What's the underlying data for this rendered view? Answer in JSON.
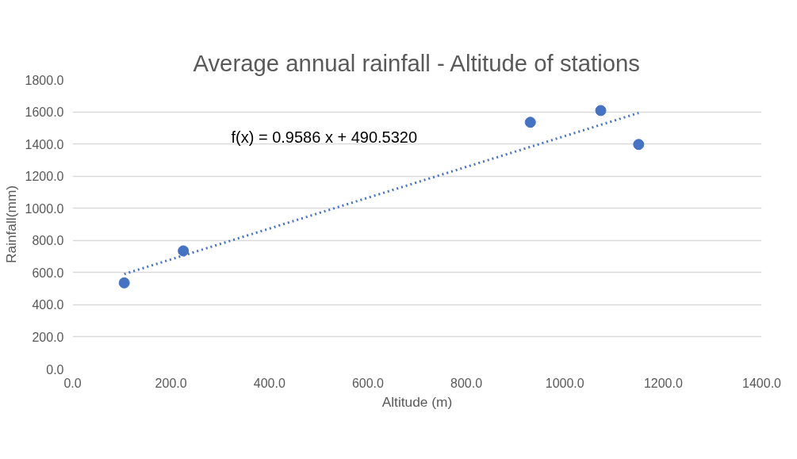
{
  "chart_data": {
    "type": "scatter",
    "title": "Average annual rainfall - Altitude of stations",
    "xlabel": "Altitude (m)",
    "ylabel": "Rainfall(mm)",
    "xlim": [
      0,
      1400
    ],
    "ylim": [
      0,
      1800
    ],
    "xticks": [
      {
        "value": 0,
        "label": "0.0"
      },
      {
        "value": 200,
        "label": "200.0"
      },
      {
        "value": 400,
        "label": "400.0"
      },
      {
        "value": 600,
        "label": "600.0"
      },
      {
        "value": 800,
        "label": "800.0"
      },
      {
        "value": 1000,
        "label": "1000.0"
      },
      {
        "value": 1200,
        "label": "1200.0"
      },
      {
        "value": 1400,
        "label": "1400.0"
      }
    ],
    "yticks": [
      {
        "value": 0,
        "label": "0.0"
      },
      {
        "value": 200,
        "label": "200.0"
      },
      {
        "value": 400,
        "label": "400.0"
      },
      {
        "value": 600,
        "label": "600.0"
      },
      {
        "value": 800,
        "label": "800.0"
      },
      {
        "value": 1000,
        "label": "1000.0"
      },
      {
        "value": 1200,
        "label": "1200.0"
      },
      {
        "value": 1400,
        "label": "1400.0"
      },
      {
        "value": 1600,
        "label": "1600.0"
      },
      {
        "value": 1800,
        "label": "1800.0"
      }
    ],
    "grid": "y",
    "marker": "circle",
    "series": [
      {
        "color": "#4472c4",
        "x": [
          105,
          225,
          930,
          1073,
          1150
        ],
        "values": [
          536,
          735,
          1535,
          1608,
          1397
        ]
      },
      {
        "type": "line",
        "color": "#4472c4",
        "line_style": "dotted",
        "marker": "none",
        "x": [
          105,
          1150
        ],
        "values": [
          591,
          1593
        ]
      }
    ],
    "annotations": [
      "f(x) = 0.9586 x + 490.5320"
    ]
  }
}
